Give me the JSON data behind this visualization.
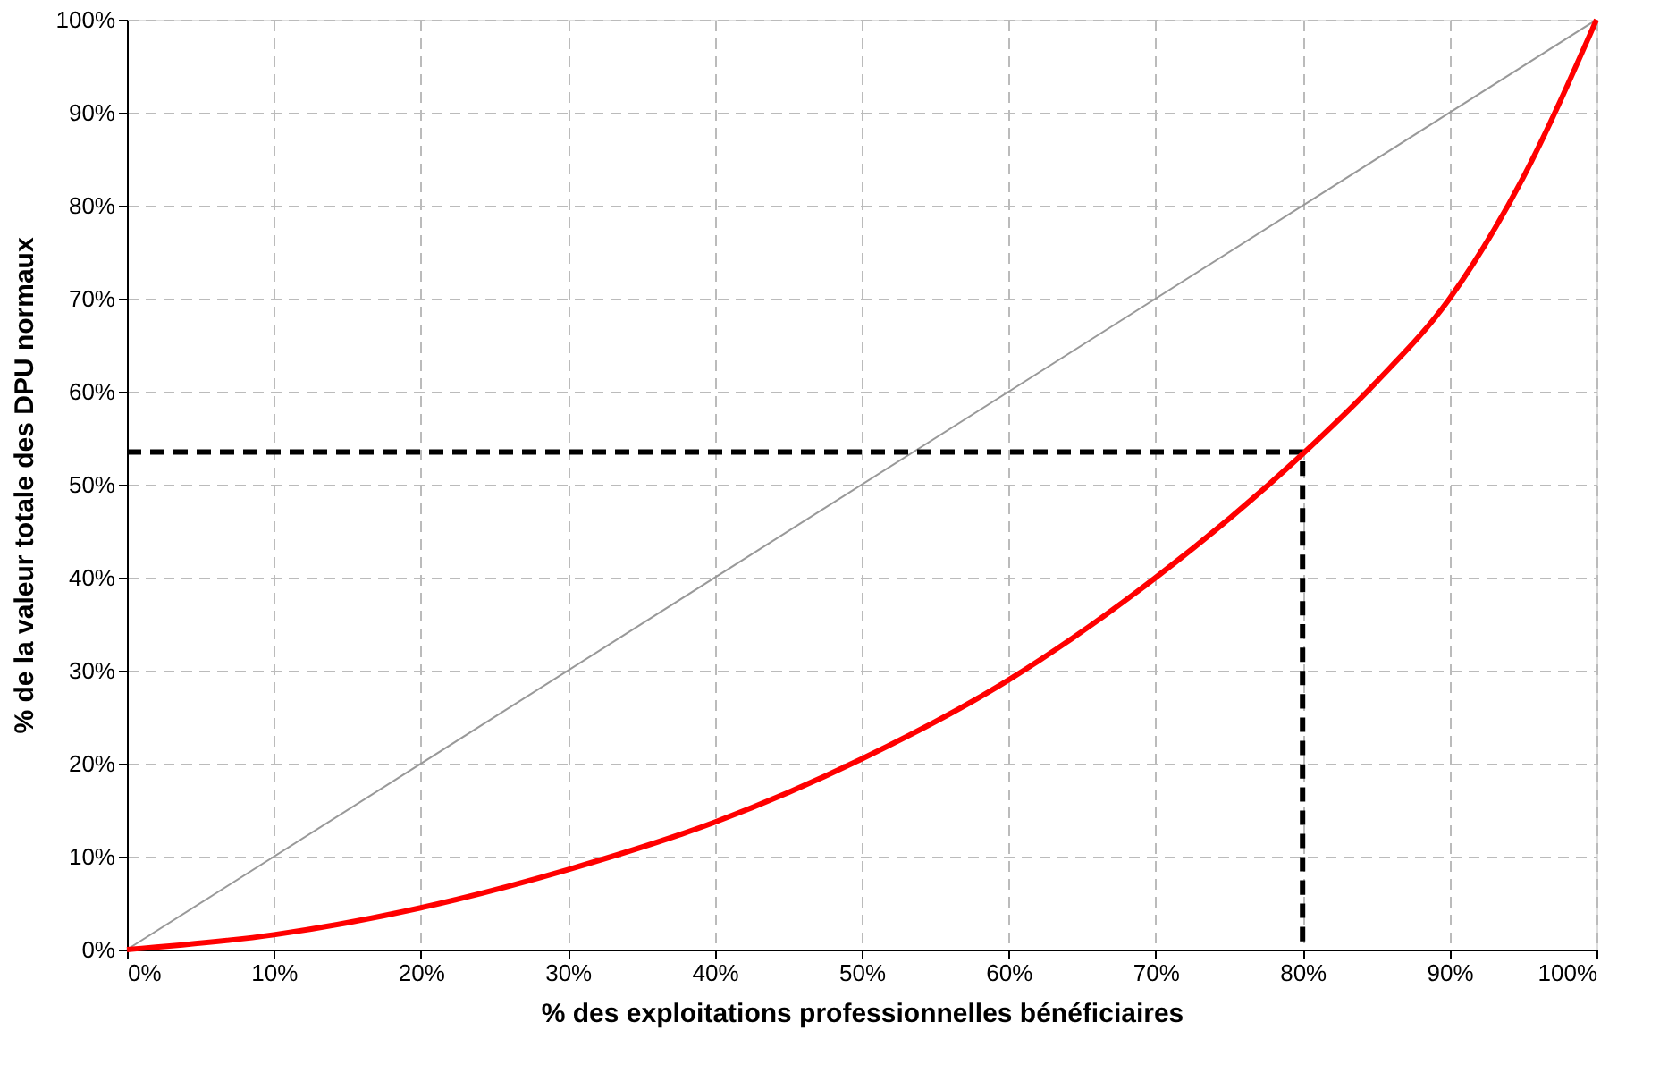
{
  "chart_data": {
    "type": "line",
    "xlabel": "% des exploitations professionnelles bénéficiaires",
    "ylabel": "% de la valeur totale des DPU normaux",
    "xlim": [
      0,
      100
    ],
    "ylim": [
      0,
      100
    ],
    "xticks": [
      {
        "value": 0,
        "label": "0%"
      },
      {
        "value": 10,
        "label": "10%"
      },
      {
        "value": 20,
        "label": "20%"
      },
      {
        "value": 30,
        "label": "30%"
      },
      {
        "value": 40,
        "label": "40%"
      },
      {
        "value": 50,
        "label": "50%"
      },
      {
        "value": 60,
        "label": "60%"
      },
      {
        "value": 70,
        "label": "70%"
      },
      {
        "value": 80,
        "label": "80%"
      },
      {
        "value": 90,
        "label": "90%"
      },
      {
        "value": 100,
        "label": "100%"
      }
    ],
    "yticks": [
      {
        "value": 0,
        "label": "0%"
      },
      {
        "value": 10,
        "label": "10%"
      },
      {
        "value": 20,
        "label": "20%"
      },
      {
        "value": 30,
        "label": "30%"
      },
      {
        "value": 40,
        "label": "40%"
      },
      {
        "value": 50,
        "label": "50%"
      },
      {
        "value": 60,
        "label": "60%"
      },
      {
        "value": 70,
        "label": "70%"
      },
      {
        "value": 80,
        "label": "80%"
      },
      {
        "value": 90,
        "label": "90%"
      },
      {
        "value": 100,
        "label": "100%"
      }
    ],
    "grid": true,
    "marker": "none",
    "series": [
      {
        "color": "#999999",
        "line_style": "solid",
        "x": [
          0,
          100
        ],
        "values": [
          0,
          100
        ]
      },
      {
        "color": "#000000",
        "line_style": "dashed",
        "x": [
          0,
          80,
          80
        ],
        "values": [
          53.5,
          53.5,
          0
        ]
      },
      {
        "color": "#ff0000",
        "line_style": "solid",
        "x": [
          0,
          10,
          20,
          30,
          40,
          50,
          60,
          70,
          80,
          85,
          90,
          95,
          100
        ],
        "values": [
          0,
          1.6,
          4.5,
          8.6,
          13.7,
          20.5,
          29,
          40,
          53.3,
          61,
          70,
          83,
          100
        ]
      }
    ]
  }
}
